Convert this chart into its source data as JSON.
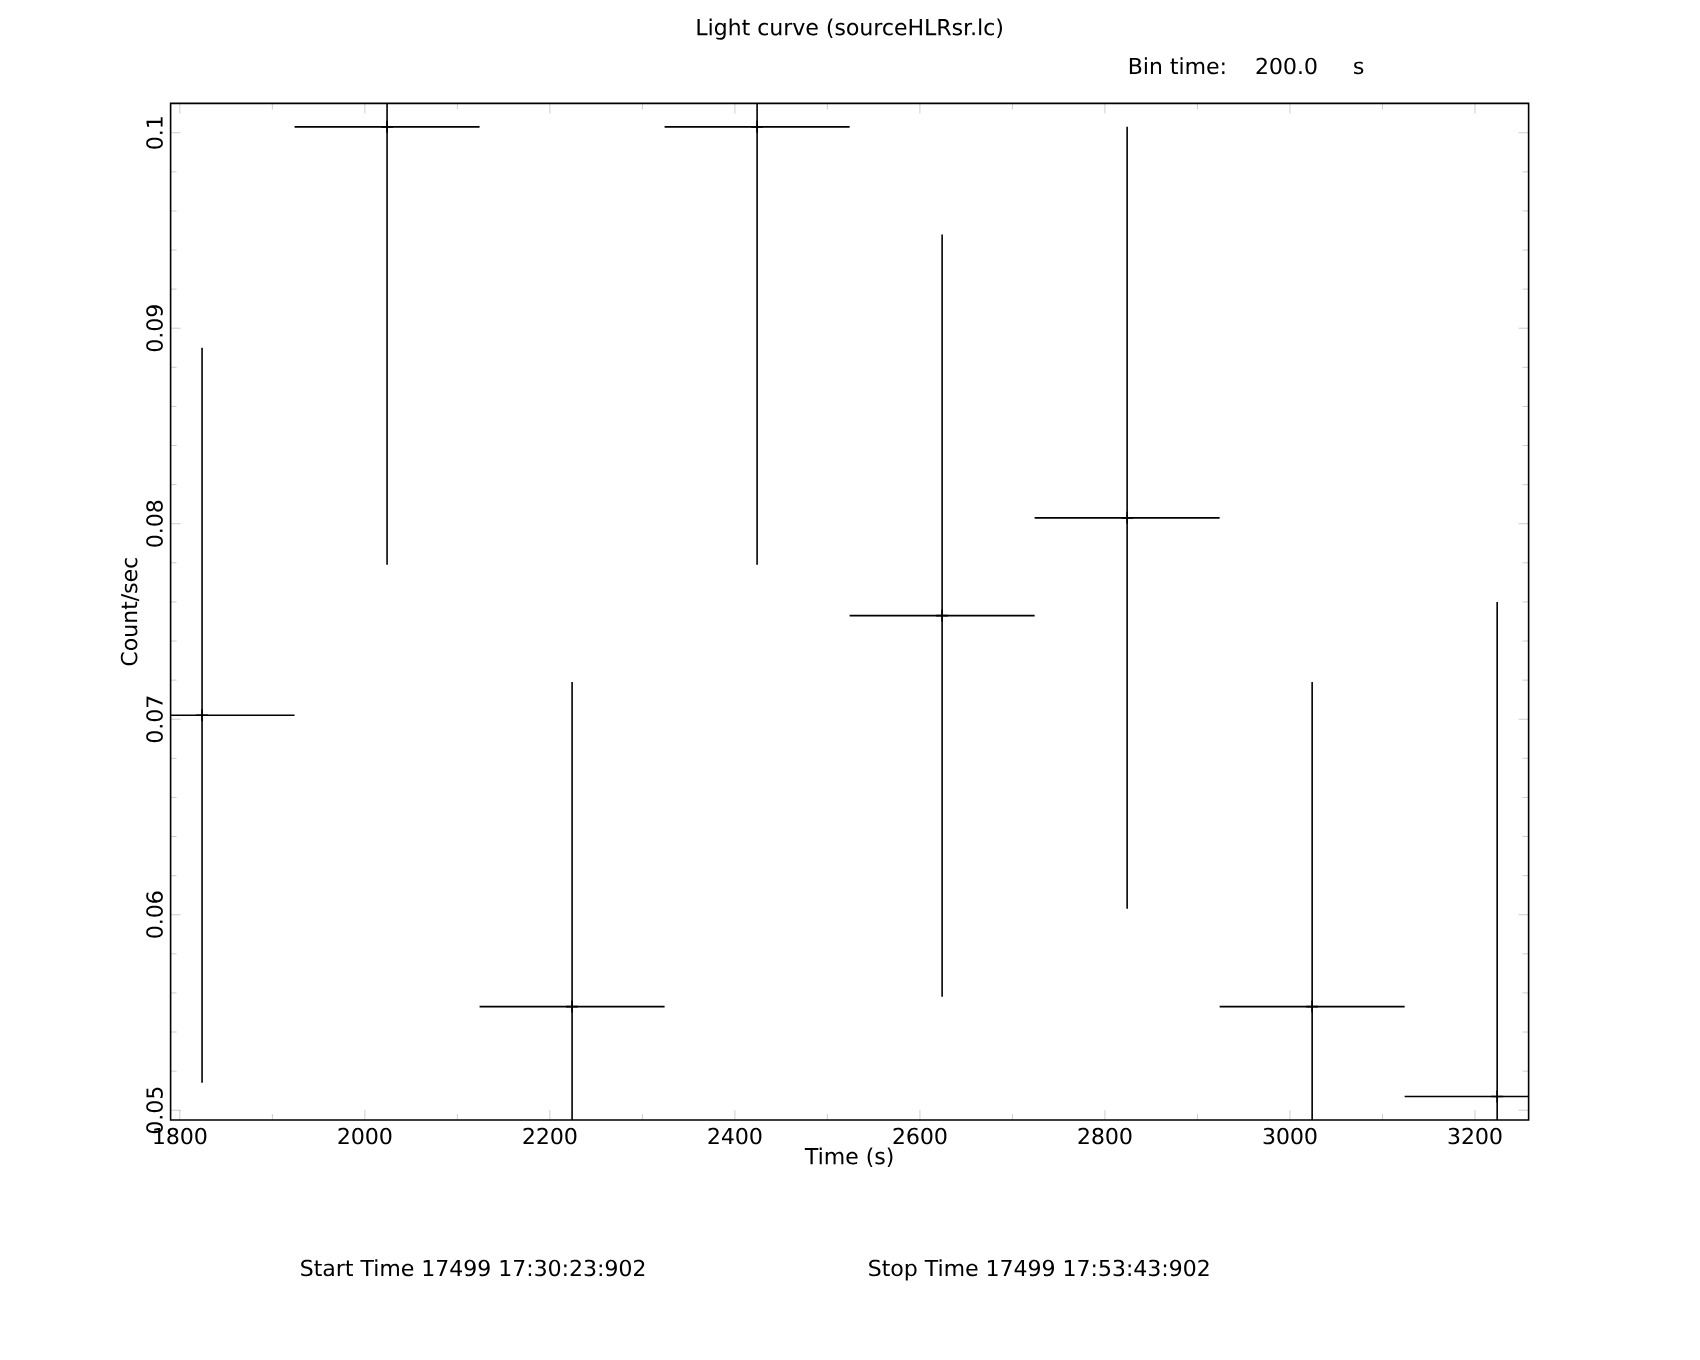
{
  "chart_data": {
    "type": "scatter",
    "title": "Light curve (sourceHLRsr.lc)",
    "subtitle": "Bin time:    200.0     s",
    "xlabel": "Time (s)",
    "ylabel": "Count/sec",
    "annotations": [
      "Start Time 17499 17:30:23:902",
      "Stop Time 17499 17:53:43:902"
    ],
    "x": [
      1824,
      2024,
      2224,
      2424,
      2624,
      2824,
      3024,
      3224
    ],
    "values": [
      0.0702,
      0.1003,
      0.0553,
      0.1003,
      0.0753,
      0.0803,
      0.0553,
      0.0507
    ],
    "errors": [
      0.0188,
      [
        0.0779,
        0.1015
      ],
      [
        0.0495,
        0.0719
      ],
      [
        0.0779,
        0.1015
      ],
      0.0195,
      0.02,
      [
        0.0495,
        0.0719
      ],
      [
        0.0495,
        0.076
      ]
    ],
    "xerrors": [
      [
        1790,
        1924
      ],
      [
        1924,
        2124
      ],
      [
        2124,
        2324
      ],
      [
        2324,
        2524
      ],
      [
        2524,
        2724
      ],
      [
        2724,
        2924
      ],
      [
        2924,
        3124
      ],
      [
        3124,
        3258
      ]
    ],
    "color": "#000000",
    "marker": "cross",
    "xlim": [
      1790,
      3258
    ],
    "ylim": [
      0.0495,
      0.1015
    ],
    "xticks": [
      1800,
      2000,
      2200,
      2400,
      2600,
      2800,
      3000,
      3200
    ],
    "yticks": [
      0.05,
      0.06,
      0.07,
      0.08,
      0.09,
      0.1
    ]
  }
}
